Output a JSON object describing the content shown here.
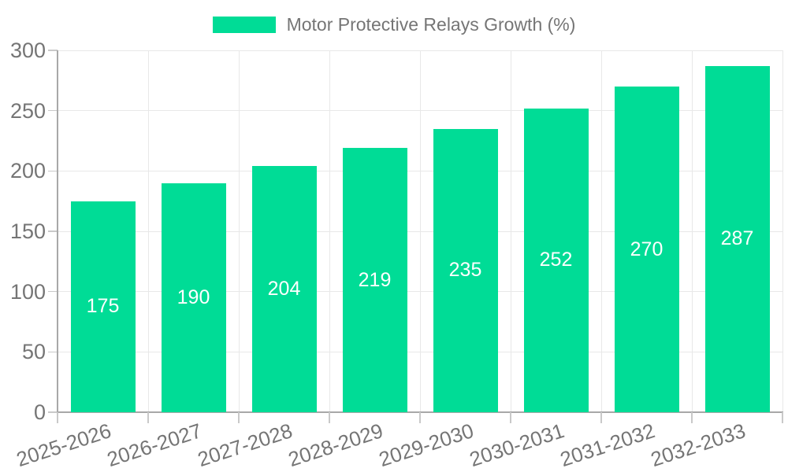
{
  "chart_data": {
    "type": "bar",
    "title": "",
    "legend": {
      "label": "Motor Protective Relays Growth (%)",
      "position": "top-center"
    },
    "categories": [
      "2025-2026",
      "2026-2027",
      "2027-2028",
      "2028-2029",
      "2029-2030",
      "2030-2031",
      "2031-2032",
      "2032-2033"
    ],
    "series": [
      {
        "name": "Motor Protective Relays Growth (%)",
        "values": [
          175,
          190,
          204,
          219,
          235,
          252,
          270,
          287
        ]
      }
    ],
    "value_labels": [
      "175",
      "190",
      "204",
      "219",
      "235",
      "252",
      "270",
      "287"
    ],
    "xlabel": "",
    "ylabel": "",
    "ylim": [
      0,
      300
    ],
    "yticks": [
      0,
      50,
      100,
      150,
      200,
      250,
      300
    ],
    "grid": "horizontal-and-vertical",
    "x_label_rotation_deg": -18
  },
  "colors": {
    "bar": "#00DC96",
    "axis": "#a8a8a8",
    "tick": "#c9c9c9",
    "grid": "#e8e8e8",
    "label": "#757575",
    "value_label": "#ffffff",
    "background": "#ffffff"
  }
}
